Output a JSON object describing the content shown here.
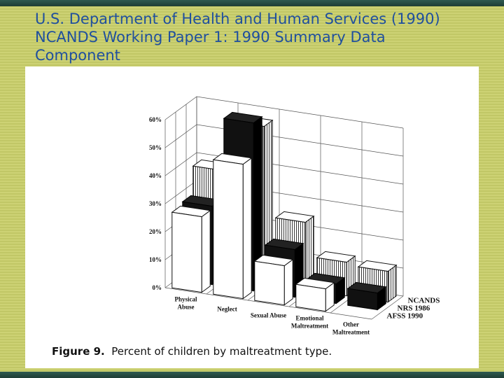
{
  "slide": {
    "title_lines": [
      "U.S. Department of Health and Human Services (1990)",
      "NCANDS Working Paper 1: 1990 Summary Data",
      "Component"
    ]
  },
  "figure": {
    "caption_label": "Figure 9.",
    "caption_text": "Percent of children by maltreatment type."
  },
  "chart_data": {
    "type": "bar",
    "subtype": "3d-grouped",
    "categories": [
      [
        "Physical",
        "Abuse"
      ],
      [
        "Neglect"
      ],
      [
        "Sexual Abuse"
      ],
      [
        "Emotional",
        "Maltreatment"
      ],
      [
        "Other",
        "Maltreatment"
      ]
    ],
    "y_ticks": [
      "0%",
      "10%",
      "20%",
      "30%",
      "40%",
      "50%",
      "60%"
    ],
    "ylim": [
      0,
      60
    ],
    "series": [
      {
        "name": "NCANDS",
        "values": [
          38,
          56,
          24,
          12,
          11
        ],
        "fill": "hatched"
      },
      {
        "name": "NRS 1986",
        "values": [
          28,
          60,
          17,
          7,
          6
        ],
        "fill": "#111111"
      },
      {
        "name": "AFSS 1990",
        "values": [
          27,
          48,
          14,
          8,
          0
        ],
        "fill": "#ffffff"
      }
    ],
    "grid": true
  }
}
